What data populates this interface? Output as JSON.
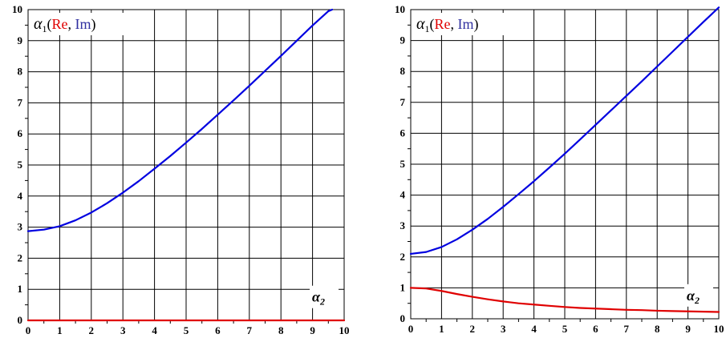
{
  "chart_data": [
    {
      "type": "line",
      "title": "",
      "ylabel": {
        "symbol": "α",
        "subscript": "1",
        "open": "(",
        "re": "Re",
        "sep": ", ",
        "im": "Im",
        "close": ")"
      },
      "xlabel": {
        "symbol": "α",
        "subscript": "2"
      },
      "xlim": [
        0,
        10
      ],
      "ylim": [
        0,
        10
      ],
      "x_ticks": [
        "0",
        "1",
        "2",
        "3",
        "4",
        "5",
        "6",
        "7",
        "8",
        "9",
        "10"
      ],
      "y_ticks": [
        "0",
        "1",
        "2",
        "3",
        "4",
        "5",
        "6",
        "7",
        "8",
        "9",
        "10"
      ],
      "grid": true,
      "legend": "none",
      "series": [
        {
          "role": "Im",
          "color": "#0000e0",
          "x": [
            0,
            0.5,
            1,
            1.5,
            2,
            2.5,
            3,
            3.5,
            4,
            4.5,
            5,
            5.5,
            6,
            6.5,
            7,
            7.5,
            8,
            8.5,
            9,
            9.5,
            9.62
          ],
          "y": [
            2.87,
            2.92,
            3.03,
            3.22,
            3.47,
            3.77,
            4.11,
            4.48,
            4.88,
            5.29,
            5.72,
            6.16,
            6.62,
            7.08,
            7.55,
            8.03,
            8.51,
            9.0,
            9.49,
            9.95,
            10.0
          ]
        },
        {
          "role": "Re",
          "color": "#e00000",
          "x": [
            0,
            10
          ],
          "y": [
            0,
            0
          ]
        }
      ]
    },
    {
      "type": "line",
      "title": "",
      "ylabel": {
        "symbol": "α",
        "subscript": "1",
        "open": "(",
        "re": "Re",
        "sep": ", ",
        "im": "Im",
        "close": ")"
      },
      "xlabel": {
        "symbol": "α",
        "subscript": "2"
      },
      "xlim": [
        0,
        10
      ],
      "ylim": [
        0,
        10
      ],
      "x_ticks": [
        "0",
        "1",
        "2",
        "3",
        "4",
        "5",
        "6",
        "7",
        "8",
        "9",
        "10"
      ],
      "y_ticks": [
        "0",
        "1",
        "2",
        "3",
        "4",
        "5",
        "6",
        "7",
        "8",
        "9",
        "10"
      ],
      "grid": true,
      "legend": "none",
      "series": [
        {
          "role": "Im",
          "color": "#0000e0",
          "x": [
            0,
            0.5,
            1,
            1.5,
            2,
            2.5,
            3,
            3.5,
            4,
            4.5,
            5,
            5.5,
            6,
            6.5,
            7,
            7.5,
            8,
            8.5,
            9,
            9.5,
            10
          ],
          "y": [
            2.1,
            2.16,
            2.32,
            2.57,
            2.88,
            3.23,
            3.62,
            4.03,
            4.45,
            4.89,
            5.34,
            5.8,
            6.27,
            6.74,
            7.21,
            7.68,
            8.16,
            8.64,
            9.12,
            9.6,
            10.07
          ]
        },
        {
          "role": "Re",
          "color": "#e00000",
          "x": [
            0,
            0.5,
            1,
            1.5,
            2,
            2.5,
            3,
            3.5,
            4,
            4.5,
            5,
            5.5,
            6,
            6.5,
            7,
            7.5,
            8,
            8.5,
            9,
            9.5,
            10
          ],
          "y": [
            1.0,
            0.98,
            0.9,
            0.8,
            0.71,
            0.63,
            0.56,
            0.5,
            0.46,
            0.42,
            0.38,
            0.35,
            0.33,
            0.31,
            0.29,
            0.28,
            0.26,
            0.25,
            0.24,
            0.23,
            0.22
          ]
        }
      ]
    }
  ]
}
